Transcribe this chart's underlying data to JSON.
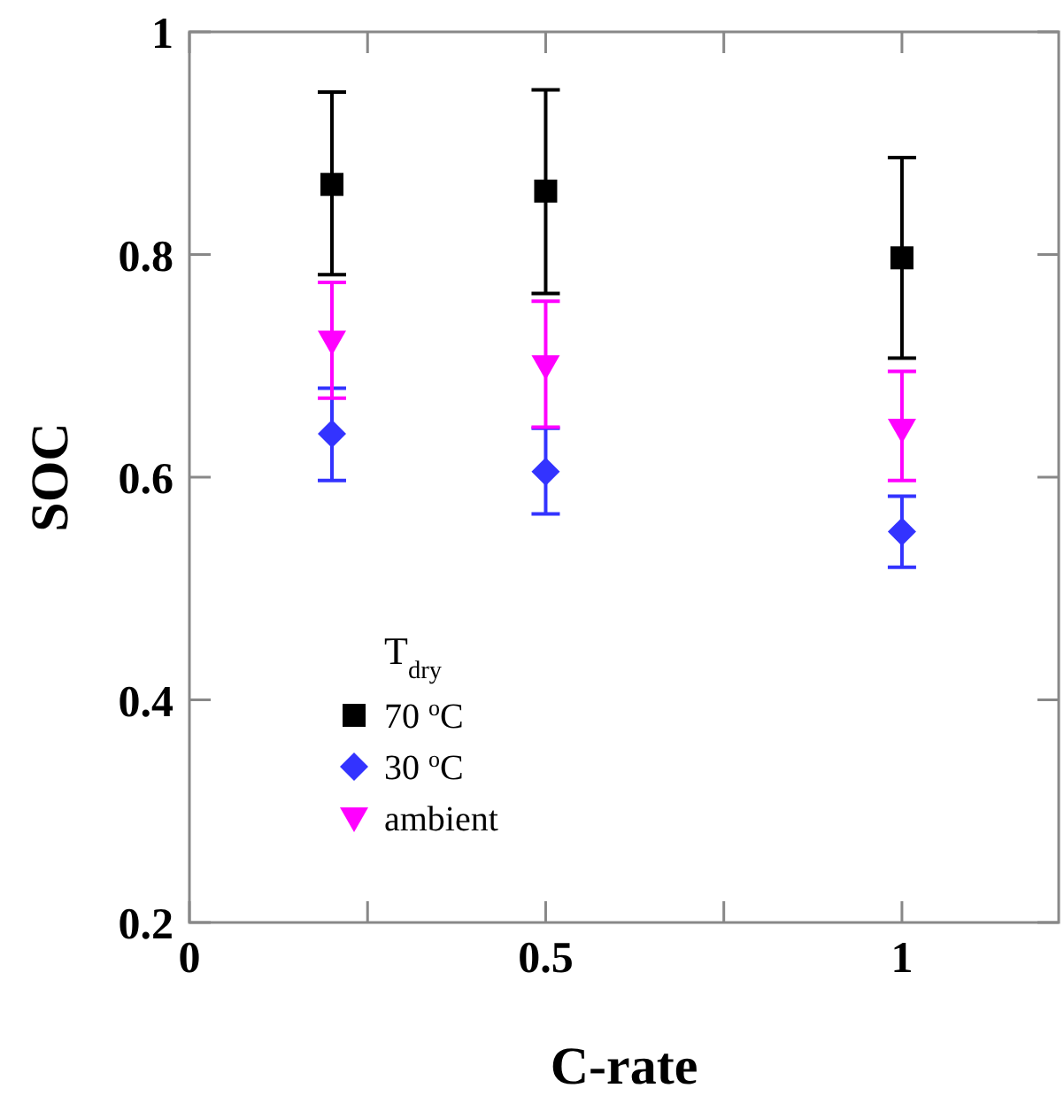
{
  "chart_data": {
    "type": "scatter",
    "xlabel": "C-rate",
    "ylabel": "SOC",
    "legend_title": "T$_{dry}$",
    "legend": "bottom left",
    "xlim": [
      0,
      1.22
    ],
    "ylim": [
      0.2,
      1
    ],
    "xticks": [
      0,
      {
        "value": 0.25,
        "label": null
      },
      0.5,
      {
        "value": 0.75,
        "label": null
      },
      1
    ],
    "yticks": [
      0.2,
      0.4,
      0.6,
      0.8,
      1
    ],
    "x": [
      0.2,
      0.5,
      1
    ],
    "series": [
      {
        "name": "70 $^{o}$C",
        "color": "#000000",
        "marker": "square",
        "values": [
          0.863,
          0.857,
          0.797
        ],
        "errors": [
          [
            0.782,
            0.946
          ],
          [
            0.765,
            0.948
          ],
          [
            0.707,
            0.887
          ]
        ]
      },
      {
        "name": "30 $^{o}$C",
        "color": "#3333ff",
        "marker": "diamond",
        "values": [
          0.639,
          0.605,
          0.551
        ],
        "errors": [
          [
            0.597,
            0.68
          ],
          [
            0.567,
            0.644
          ],
          [
            0.519,
            0.583
          ]
        ]
      },
      {
        "name": "ambient",
        "color": "#ff00ff",
        "marker": "triangle",
        "values": [
          0.722,
          0.7,
          0.643
        ],
        "errors": [
          [
            0.671,
            0.775
          ],
          [
            0.645,
            0.758
          ],
          [
            0.597,
            0.695
          ]
        ]
      }
    ]
  }
}
